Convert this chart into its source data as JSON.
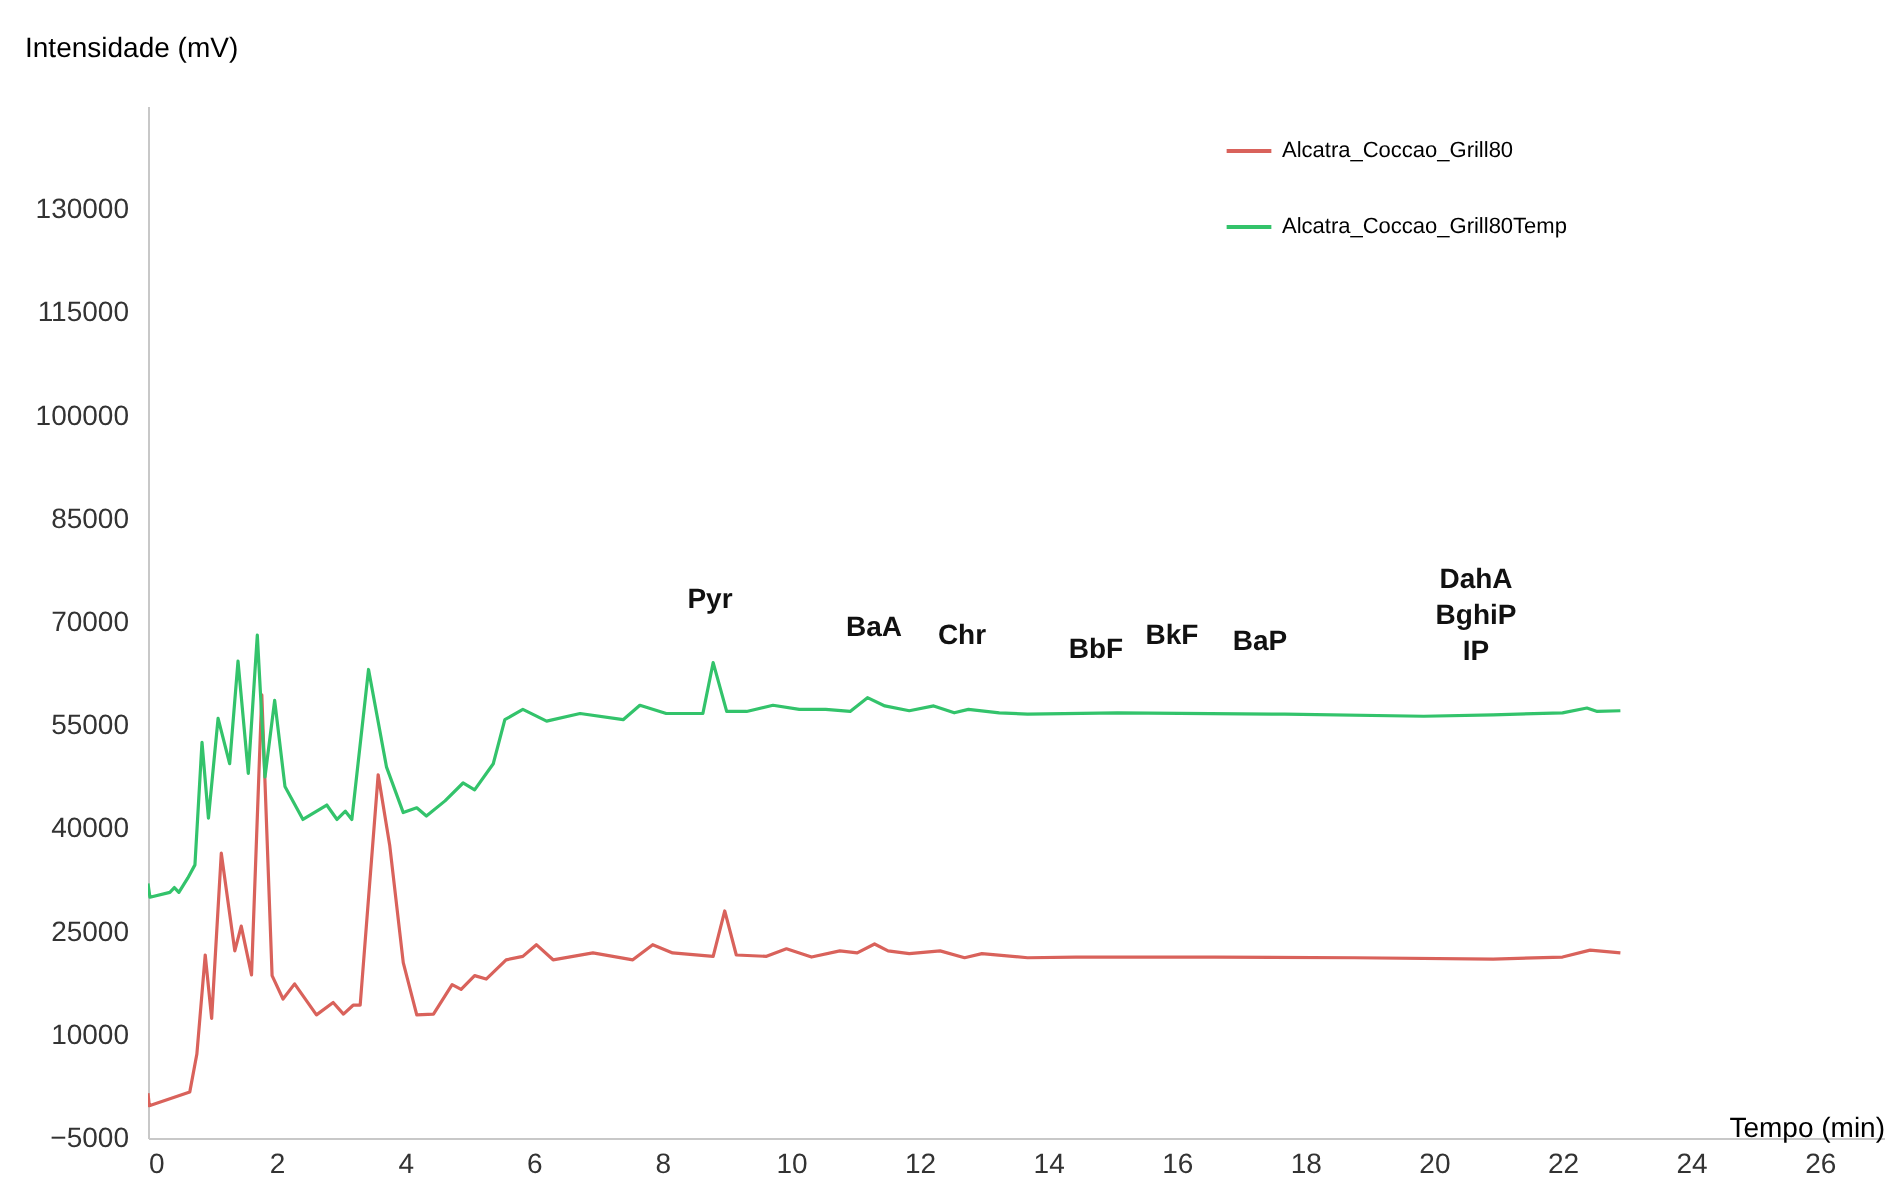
{
  "chart_data": {
    "type": "line",
    "xlabel": "Tempo (min)",
    "ylabel": "Intensidade (mV)",
    "xlim": [
      0,
      27
    ],
    "xticks": [
      0,
      2,
      4,
      6,
      8,
      10,
      12,
      14,
      16,
      18,
      20,
      22,
      24,
      26
    ],
    "ylim": [
      -5000,
      145000
    ],
    "yticks": [
      -5000,
      10000,
      25000,
      40000,
      55000,
      70000,
      85000,
      100000,
      115000,
      130000
    ],
    "grid": false,
    "legend": "top right",
    "marker": "none",
    "line_style": "solid",
    "series": [
      {
        "name": "Alcatra_Coccao_Grill80",
        "color": "#d9625b",
        "x": [
          0,
          0.02,
          0.65,
          0.76,
          0.89,
          0.99,
          1.14,
          1.35,
          1.45,
          1.61,
          1.77,
          1.93,
          2.1,
          2.28,
          2.62,
          2.88,
          3.04,
          3.19,
          3.3,
          3.58,
          3.76,
          3.97,
          4.18,
          4.44,
          4.73,
          4.87,
          5.08,
          5.26,
          5.57,
          5.83,
          6.04,
          6.3,
          6.92,
          7.54,
          7.85,
          8.16,
          8.79,
          8.97,
          9.15,
          9.62,
          9.93,
          10.32,
          10.76,
          11.03,
          11.3,
          11.51,
          11.84,
          12.32,
          12.7,
          12.97,
          13.68,
          14.43,
          16.59,
          18.76,
          20.92,
          22.0,
          22.43,
          22.9
        ],
        "values": [
          1500,
          -300,
          1700,
          7200,
          21600,
          12400,
          36400,
          22200,
          25800,
          18700,
          59400,
          18600,
          15200,
          17400,
          12900,
          14700,
          13000,
          14300,
          14300,
          47800,
          37500,
          20500,
          12900,
          13000,
          17300,
          16600,
          18600,
          18100,
          20900,
          21400,
          23100,
          20900,
          21900,
          20900,
          23100,
          21900,
          21400,
          28000,
          21600,
          21400,
          22500,
          21300,
          22200,
          21900,
          23200,
          22200,
          21800,
          22200,
          21200,
          21800,
          21200,
          21300,
          21300,
          21200,
          21000,
          21300,
          22300,
          21900
        ]
      },
      {
        "name": "Alcatra_Coccao_Grill80Temp",
        "color": "#33c36b",
        "x": [
          0,
          0.03,
          0.34,
          0.41,
          0.48,
          0.62,
          0.73,
          0.84,
          0.94,
          1.09,
          1.27,
          1.4,
          1.56,
          1.7,
          1.82,
          1.97,
          2.13,
          2.41,
          2.78,
          2.94,
          3.07,
          3.17,
          3.43,
          3.71,
          3.97,
          4.18,
          4.33,
          4.62,
          4.9,
          5.08,
          5.37,
          5.55,
          5.83,
          6.2,
          6.72,
          7.39,
          7.65,
          8.06,
          8.63,
          8.79,
          9.0,
          9.31,
          9.72,
          10.13,
          10.54,
          10.92,
          11.19,
          11.46,
          11.84,
          12.22,
          12.54,
          12.76,
          13.24,
          13.68,
          15.08,
          17.68,
          19.84,
          20.92,
          22.0,
          22.38,
          22.54,
          22.9
        ],
        "values": [
          32000,
          30000,
          30700,
          31400,
          30700,
          32800,
          34700,
          52500,
          41500,
          56000,
          49400,
          64300,
          48000,
          68100,
          47500,
          58600,
          46100,
          41300,
          43400,
          41300,
          42500,
          41300,
          63100,
          48900,
          42300,
          43000,
          41800,
          44000,
          46600,
          45600,
          49400,
          55800,
          57300,
          55600,
          56700,
          55800,
          57900,
          56700,
          56700,
          64100,
          57000,
          57000,
          57900,
          57300,
          57300,
          57000,
          59000,
          57800,
          57100,
          57800,
          56800,
          57300,
          56800,
          56600,
          56800,
          56600,
          56300,
          56500,
          56800,
          57500,
          57000,
          57100
        ]
      }
    ],
    "annotations": [
      "Pyr",
      "BaA",
      "Chr",
      "BbF",
      "BkF",
      "BaP",
      "DahA",
      "BghiP",
      "IP"
    ]
  }
}
